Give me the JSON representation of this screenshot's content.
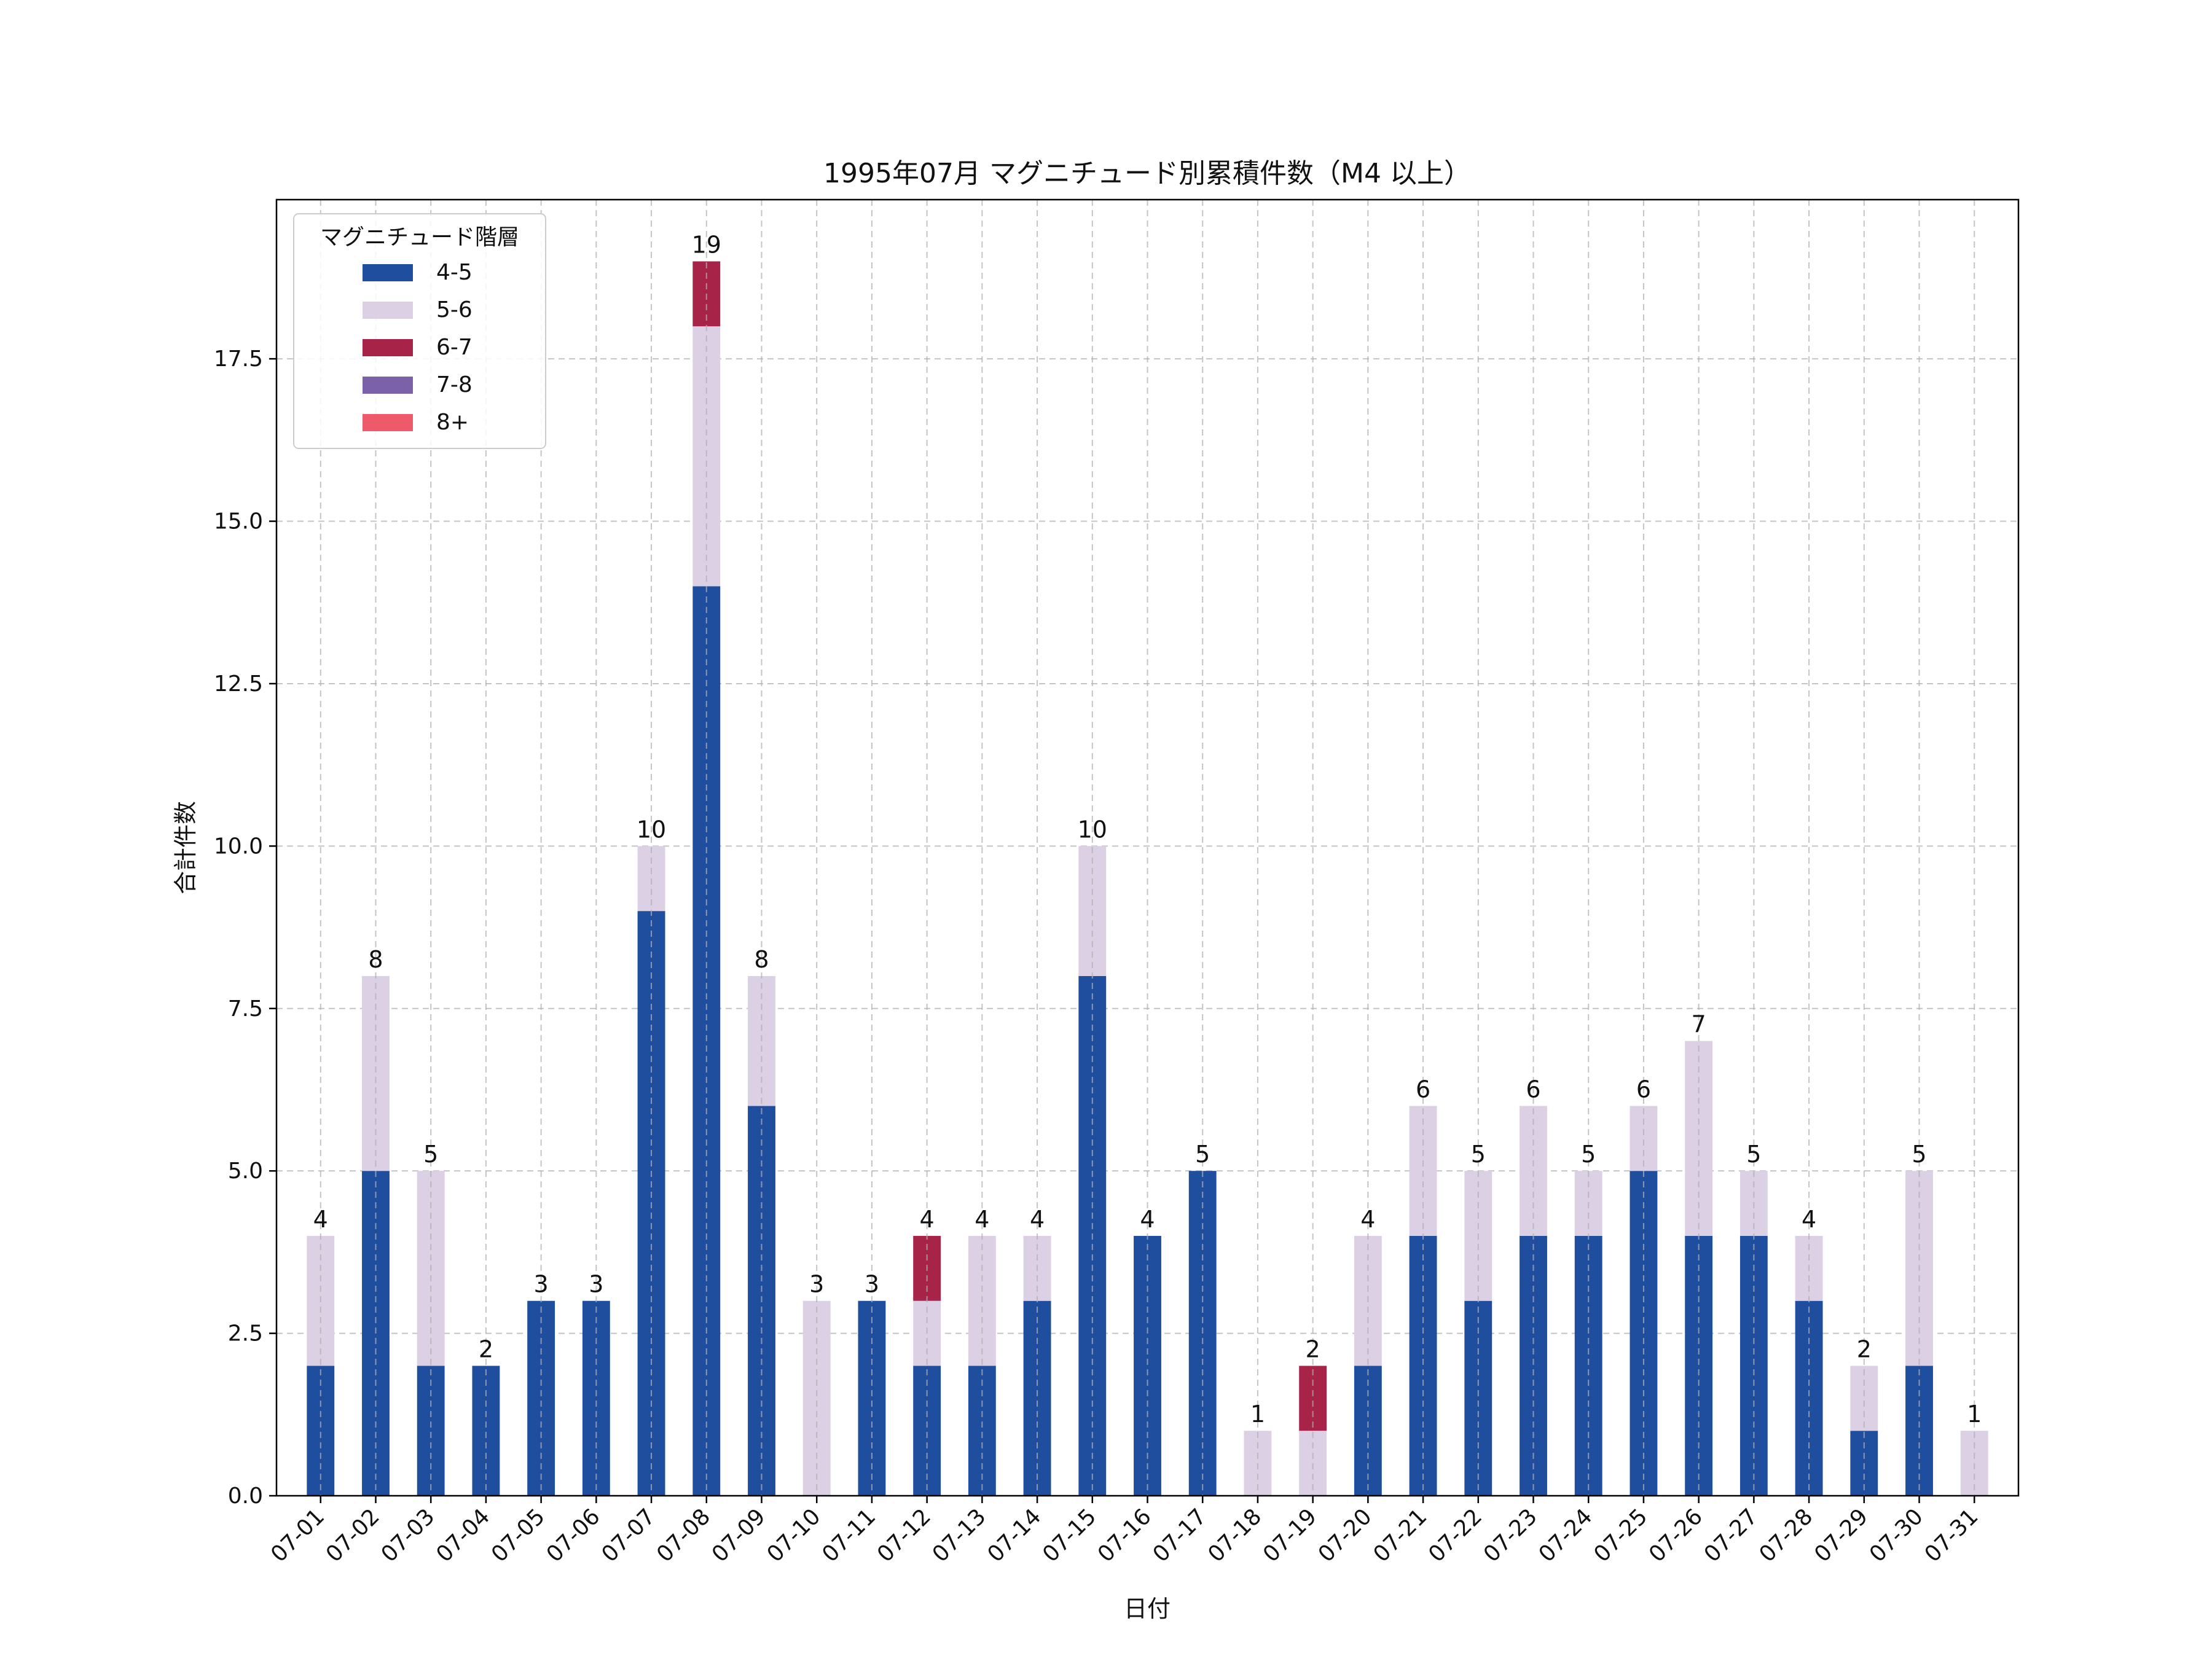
{
  "chart_data": {
    "type": "bar",
    "stacked": true,
    "title": "1995年07月 マグニチュード別累積件数（M4 以上）",
    "xlabel": "日付",
    "ylabel": "合計件数",
    "ylim": [
      0,
      20
    ],
    "yticks": [
      0.0,
      2.5,
      5.0,
      7.5,
      10.0,
      12.5,
      15.0,
      17.5
    ],
    "ytick_labels": [
      "0.0",
      "2.5",
      "5.0",
      "7.5",
      "10.0",
      "12.5",
      "15.0",
      "17.5"
    ],
    "grid": true,
    "legend": {
      "title": "マグニチュード階層",
      "position": "top-left"
    },
    "categories": [
      "07-01",
      "07-02",
      "07-03",
      "07-04",
      "07-05",
      "07-06",
      "07-07",
      "07-08",
      "07-09",
      "07-10",
      "07-11",
      "07-12",
      "07-13",
      "07-14",
      "07-15",
      "07-16",
      "07-17",
      "07-18",
      "07-19",
      "07-20",
      "07-21",
      "07-22",
      "07-23",
      "07-24",
      "07-25",
      "07-26",
      "07-27",
      "07-28",
      "07-29",
      "07-30",
      "07-31"
    ],
    "series": [
      {
        "name": "4-5",
        "color": "#1f4e9e",
        "values": [
          2,
          5,
          2,
          2,
          3,
          3,
          9,
          14,
          6,
          0,
          3,
          2,
          2,
          3,
          8,
          4,
          5,
          0,
          0,
          2,
          4,
          3,
          4,
          4,
          5,
          4,
          4,
          3,
          1,
          2,
          0
        ]
      },
      {
        "name": "5-6",
        "color": "#dcd0e4",
        "values": [
          2,
          3,
          3,
          0,
          0,
          0,
          1,
          4,
          2,
          3,
          0,
          1,
          2,
          1,
          2,
          0,
          0,
          1,
          1,
          2,
          2,
          2,
          2,
          1,
          1,
          3,
          1,
          1,
          1,
          3,
          1
        ]
      },
      {
        "name": "6-7",
        "color": "#a82348",
        "values": [
          0,
          0,
          0,
          0,
          0,
          0,
          0,
          1,
          0,
          0,
          0,
          1,
          0,
          0,
          0,
          0,
          0,
          0,
          1,
          0,
          0,
          0,
          0,
          0,
          0,
          0,
          0,
          0,
          0,
          0,
          0
        ]
      },
      {
        "name": "7-8",
        "color": "#7a61a8",
        "values": [
          0,
          0,
          0,
          0,
          0,
          0,
          0,
          0,
          0,
          0,
          0,
          0,
          0,
          0,
          0,
          0,
          0,
          0,
          0,
          0,
          0,
          0,
          0,
          0,
          0,
          0,
          0,
          0,
          0,
          0,
          0
        ]
      },
      {
        "name": "8+",
        "color": "#ee5a6a",
        "values": [
          0,
          0,
          0,
          0,
          0,
          0,
          0,
          0,
          0,
          0,
          0,
          0,
          0,
          0,
          0,
          0,
          0,
          0,
          0,
          0,
          0,
          0,
          0,
          0,
          0,
          0,
          0,
          0,
          0,
          0,
          0
        ]
      }
    ],
    "totals": [
      4,
      8,
      5,
      2,
      3,
      3,
      10,
      19,
      8,
      3,
      3,
      4,
      4,
      4,
      10,
      4,
      5,
      1,
      2,
      4,
      6,
      5,
      6,
      5,
      6,
      7,
      5,
      4,
      2,
      5,
      1
    ]
  }
}
